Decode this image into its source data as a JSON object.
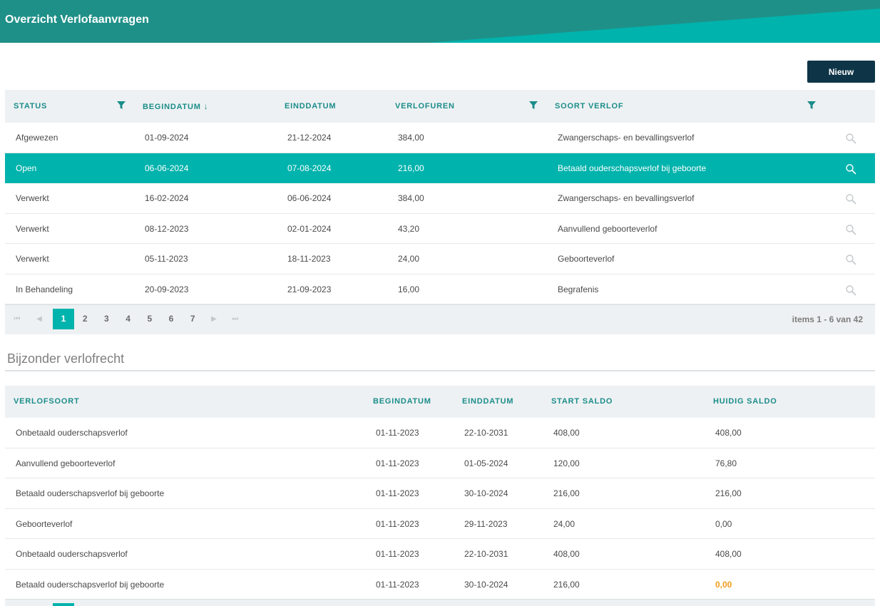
{
  "colors": {
    "accent": "#00b3ac",
    "header_text": "#1b8d8a",
    "button_dark": "#0d3547",
    "highlight": "#f29b1d"
  },
  "header": {
    "title": "Overzicht Verlofaanvragen"
  },
  "toolbar": {
    "new_label": "Nieuw"
  },
  "requests": {
    "columns": {
      "status": "Status",
      "begin": "Begindatum",
      "end": "Einddatum",
      "hours": "Verlofuren",
      "type": "Soort verlof"
    },
    "sort_indicator": "↓",
    "rows": [
      {
        "status": "Afgewezen",
        "begin": "01-09-2024",
        "end": "21-12-2024",
        "hours": "384,00",
        "type": "Zwangerschaps- en bevallingsverlof",
        "selected": false
      },
      {
        "status": "Open",
        "begin": "06-06-2024",
        "end": "07-08-2024",
        "hours": "216,00",
        "type": "Betaald ouderschapsverlof bij geboorte",
        "selected": true
      },
      {
        "status": "Verwerkt",
        "begin": "16-02-2024",
        "end": "06-06-2024",
        "hours": "384,00",
        "type": "Zwangerschaps- en bevallingsverlof",
        "selected": false
      },
      {
        "status": "Verwerkt",
        "begin": "08-12-2023",
        "end": "02-01-2024",
        "hours": "43,20",
        "type": "Aanvullend geboorteverlof",
        "selected": false
      },
      {
        "status": "Verwerkt",
        "begin": "05-11-2023",
        "end": "18-11-2023",
        "hours": "24,00",
        "type": "Geboorteverlof",
        "selected": false
      },
      {
        "status": "In Behandeling",
        "begin": "20-09-2023",
        "end": "21-09-2023",
        "hours": "16,00",
        "type": "Begrafenis",
        "selected": false
      }
    ],
    "pager": {
      "first": "⏮",
      "prev": "◀",
      "next": "▶",
      "last": "⏭",
      "pages": [
        "1",
        "2",
        "3",
        "4",
        "5",
        "6",
        "7"
      ],
      "current": "1",
      "info": "items 1 - 6 van 42"
    }
  },
  "special": {
    "title": "Bijzonder verlofrecht",
    "columns": {
      "type": "Verlofsoort",
      "begin": "Begindatum",
      "end": "Einddatum",
      "start": "Start saldo",
      "current": "Huidig saldo"
    },
    "rows": [
      {
        "type": "Onbetaald ouderschapsverlof",
        "begin": "01-11-2023",
        "end": "22-10-2031",
        "start": "408,00",
        "current": "408,00",
        "highlight": false
      },
      {
        "type": "Aanvullend geboorteverlof",
        "begin": "01-11-2023",
        "end": "01-05-2024",
        "start": "120,00",
        "current": "76,80",
        "highlight": false
      },
      {
        "type": "Betaald ouderschapsverlof bij geboorte",
        "begin": "01-11-2023",
        "end": "30-10-2024",
        "start": "216,00",
        "current": "216,00",
        "highlight": false
      },
      {
        "type": "Geboorteverlof",
        "begin": "01-11-2023",
        "end": "29-11-2023",
        "start": "24,00",
        "current": "0,00",
        "highlight": false
      },
      {
        "type": "Onbetaald ouderschapsverlof",
        "begin": "01-11-2023",
        "end": "22-10-2031",
        "start": "408,00",
        "current": "408,00",
        "highlight": false
      },
      {
        "type": "Betaald ouderschapsverlof bij geboorte",
        "begin": "01-11-2023",
        "end": "30-10-2024",
        "start": "216,00",
        "current": "0,00",
        "highlight": true
      }
    ]
  }
}
